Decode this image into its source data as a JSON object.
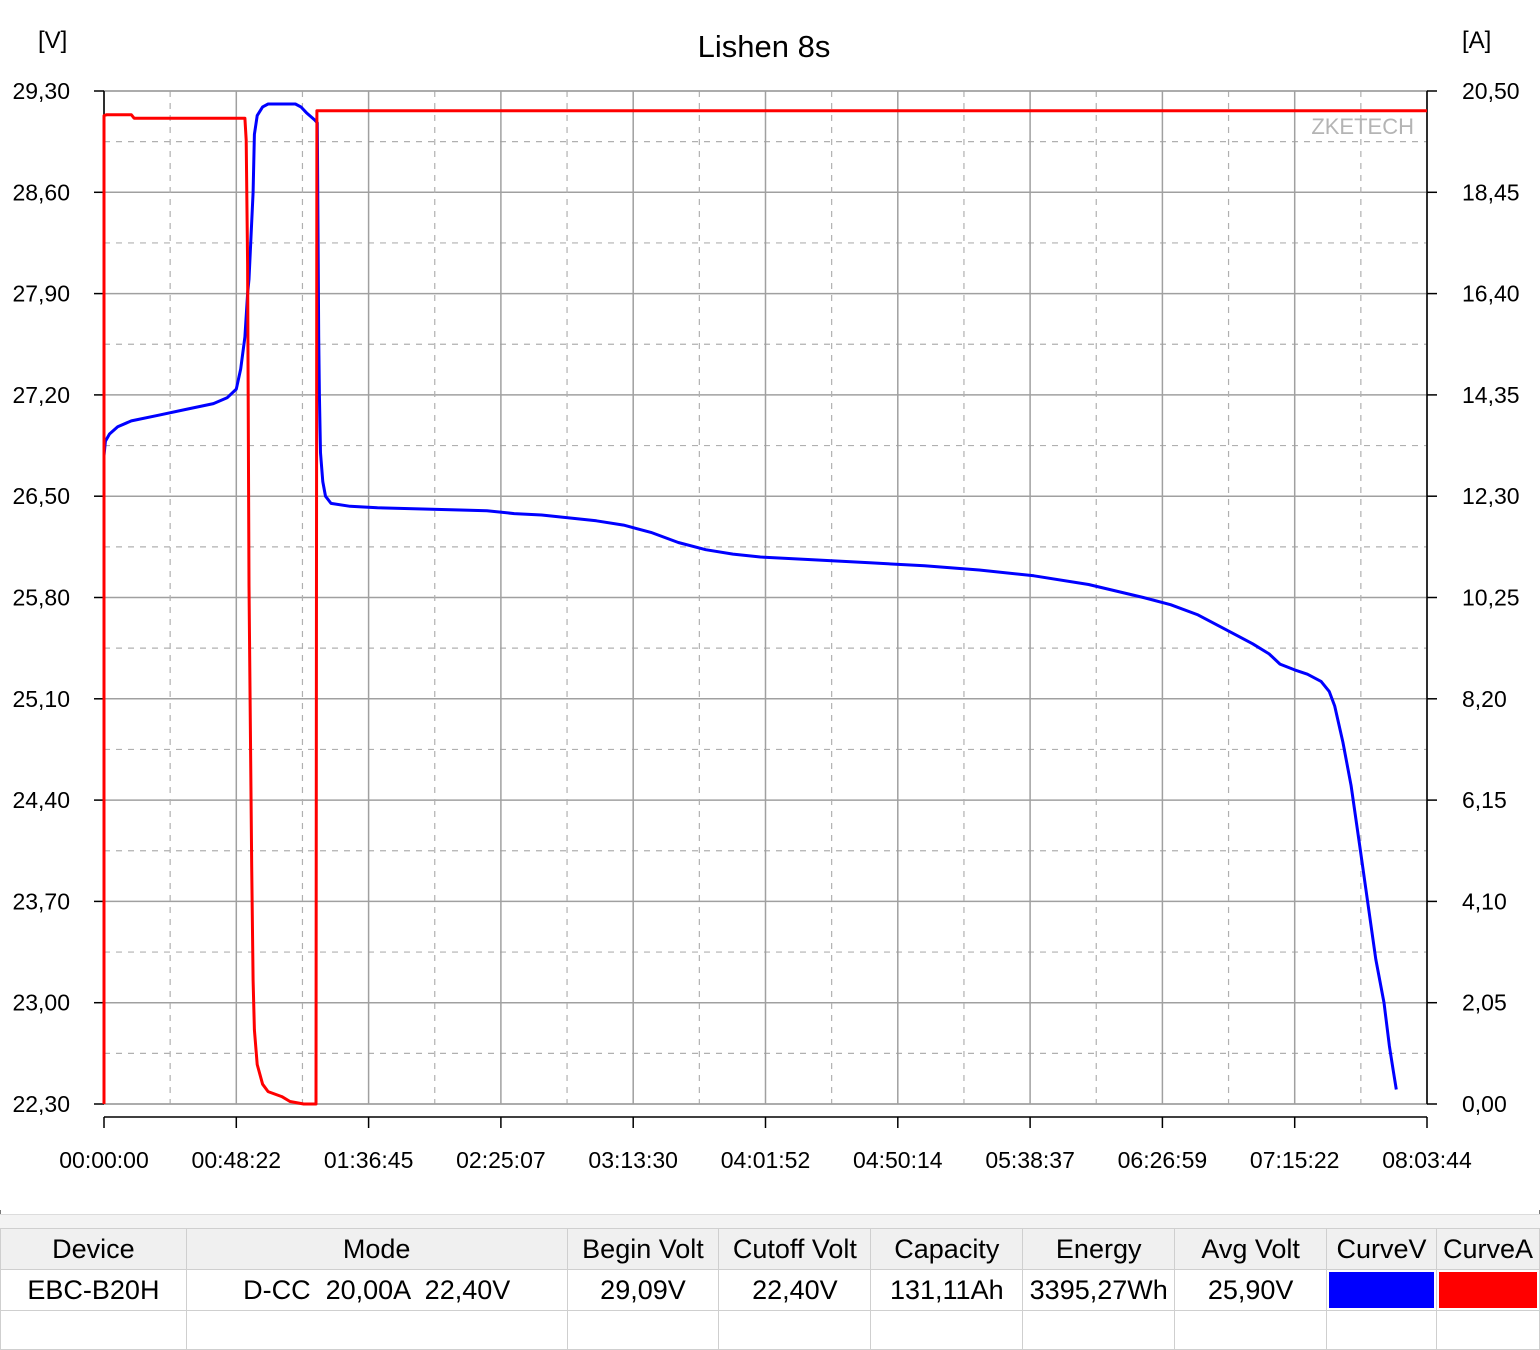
{
  "chart_data": {
    "type": "line",
    "title": "Lishen 8s",
    "left_axis": {
      "unit": "[V]",
      "min": 22.3,
      "max": 29.3,
      "ticks": [
        "29,30",
        "28,60",
        "27,90",
        "27,20",
        "26,50",
        "25,80",
        "25,10",
        "24,40",
        "23,70",
        "23,00",
        "22,30"
      ]
    },
    "right_axis": {
      "unit": "[A]",
      "min": 0.0,
      "max": 20.5,
      "ticks": [
        "20,50",
        "18,45",
        "16,40",
        "14,35",
        "12,30",
        "10,25",
        "8,20",
        "6,15",
        "4,10",
        "2,05",
        "0,00"
      ]
    },
    "x_axis": {
      "min_seconds": 0,
      "max_seconds": 29024,
      "ticks": [
        "00:00:00",
        "00:48:22",
        "01:36:45",
        "02:25:07",
        "03:13:30",
        "04:01:52",
        "04:50:14",
        "05:38:37",
        "06:26:59",
        "07:15:22",
        "08:03:44"
      ]
    },
    "grid": true,
    "watermark": "ZKETECH",
    "series": [
      {
        "axis": "left",
        "color": "#0000ff",
        "points": [
          [
            "00:00:00",
            26.78
          ],
          [
            "00:00:30",
            26.88
          ],
          [
            "00:02:00",
            26.93
          ],
          [
            "00:05:00",
            26.98
          ],
          [
            "00:10:00",
            27.02
          ],
          [
            "00:20:00",
            27.06
          ],
          [
            "00:30:00",
            27.1
          ],
          [
            "00:40:00",
            27.14
          ],
          [
            "00:45:00",
            27.18
          ],
          [
            "00:48:22",
            27.24
          ],
          [
            "00:50:00",
            27.38
          ],
          [
            "00:51:30",
            27.6
          ],
          [
            "00:52:30",
            27.9
          ],
          [
            "00:53:00",
            28.0
          ],
          [
            "00:54:30",
            28.6
          ],
          [
            "00:55:00",
            29.0
          ],
          [
            "00:56:00",
            29.13
          ],
          [
            "00:58:00",
            29.19
          ],
          [
            "01:00:00",
            29.21
          ],
          [
            "01:05:00",
            29.21
          ],
          [
            "01:10:00",
            29.21
          ],
          [
            "01:12:00",
            29.19
          ],
          [
            "01:14:00",
            29.15
          ],
          [
            "01:17:00",
            29.1
          ],
          [
            "01:18:00",
            29.08
          ],
          [
            "01:18:30",
            27.6
          ],
          [
            "01:18:45",
            27.2
          ],
          [
            "01:19:10",
            26.8
          ],
          [
            "01:20:00",
            26.6
          ],
          [
            "01:21:00",
            26.5
          ],
          [
            "01:23:00",
            26.45
          ],
          [
            "01:30:00",
            26.43
          ],
          [
            "01:40:00",
            26.42
          ],
          [
            "02:00:00",
            26.41
          ],
          [
            "02:20:00",
            26.4
          ],
          [
            "02:30:00",
            26.38
          ],
          [
            "02:40:00",
            26.37
          ],
          [
            "02:50:00",
            26.35
          ],
          [
            "03:00:00",
            26.33
          ],
          [
            "03:10:00",
            26.3
          ],
          [
            "03:20:00",
            26.25
          ],
          [
            "03:30:00",
            26.18
          ],
          [
            "03:40:00",
            26.13
          ],
          [
            "03:50:00",
            26.1
          ],
          [
            "04:00:00",
            26.08
          ],
          [
            "04:20:00",
            26.06
          ],
          [
            "04:40:00",
            26.04
          ],
          [
            "05:00:00",
            26.02
          ],
          [
            "05:20:00",
            25.99
          ],
          [
            "05:40:00",
            25.95
          ],
          [
            "06:00:00",
            25.89
          ],
          [
            "06:20:00",
            25.8
          ],
          [
            "06:30:00",
            25.75
          ],
          [
            "06:40:00",
            25.68
          ],
          [
            "06:50:00",
            25.58
          ],
          [
            "07:00:00",
            25.48
          ],
          [
            "07:06:00",
            25.41
          ],
          [
            "07:10:00",
            25.34
          ],
          [
            "07:15:22",
            25.3
          ],
          [
            "07:20:00",
            25.27
          ],
          [
            "07:25:00",
            25.22
          ],
          [
            "07:28:00",
            25.15
          ],
          [
            "07:30:00",
            25.05
          ],
          [
            "07:33:00",
            24.8
          ],
          [
            "07:36:00",
            24.5
          ],
          [
            "07:39:00",
            24.1
          ],
          [
            "07:42:00",
            23.7
          ],
          [
            "07:45:00",
            23.3
          ],
          [
            "07:48:00",
            23.0
          ],
          [
            "07:50:00",
            22.7
          ],
          [
            "07:51:30",
            22.52
          ],
          [
            "07:52:30",
            22.4
          ]
        ]
      },
      {
        "axis": "right",
        "color": "#ff0000",
        "points": [
          [
            "00:00:00",
            0.0
          ],
          [
            "00:00:01",
            20.0
          ],
          [
            "00:01:00",
            20.02
          ],
          [
            "00:10:00",
            20.02
          ],
          [
            "00:11:00",
            19.95
          ],
          [
            "00:20:00",
            19.95
          ],
          [
            "00:40:00",
            19.95
          ],
          [
            "00:48:22",
            19.95
          ],
          [
            "00:51:30",
            19.95
          ],
          [
            "00:52:00",
            19.5
          ],
          [
            "00:52:30",
            17.0
          ],
          [
            "00:53:00",
            10.5
          ],
          [
            "00:54:00",
            4.8
          ],
          [
            "00:54:30",
            2.5
          ],
          [
            "00:55:00",
            1.5
          ],
          [
            "00:56:00",
            0.8
          ],
          [
            "00:58:00",
            0.4
          ],
          [
            "01:00:00",
            0.25
          ],
          [
            "01:05:00",
            0.15
          ],
          [
            "01:08:00",
            0.05
          ],
          [
            "01:13:00",
            0.0
          ],
          [
            "01:17:30",
            0.0
          ],
          [
            "01:17:50",
            20.1
          ],
          [
            "01:20:00",
            20.1
          ],
          [
            "03:00:00",
            20.1
          ],
          [
            "05:00:00",
            20.1
          ],
          [
            "07:00:00",
            20.1
          ],
          [
            "08:03:44",
            20.1
          ]
        ]
      }
    ]
  },
  "results_table": {
    "headers": [
      "Device",
      "Mode",
      "Begin Volt",
      "Cutoff Volt",
      "Capacity",
      "Energy",
      "Avg Volt",
      "CurveV",
      "CurveA"
    ],
    "row": {
      "device": "EBC-B20H",
      "mode": "D-CC  20,00A  22,40V",
      "begin_volt": "29,09V",
      "cutoff_volt": "22,40V",
      "capacity": "131,11Ah",
      "energy": "3395,27Wh",
      "avg_volt": "25,90V",
      "curve_v_color": "#0000ff",
      "curve_a_color": "#ff0000"
    }
  }
}
